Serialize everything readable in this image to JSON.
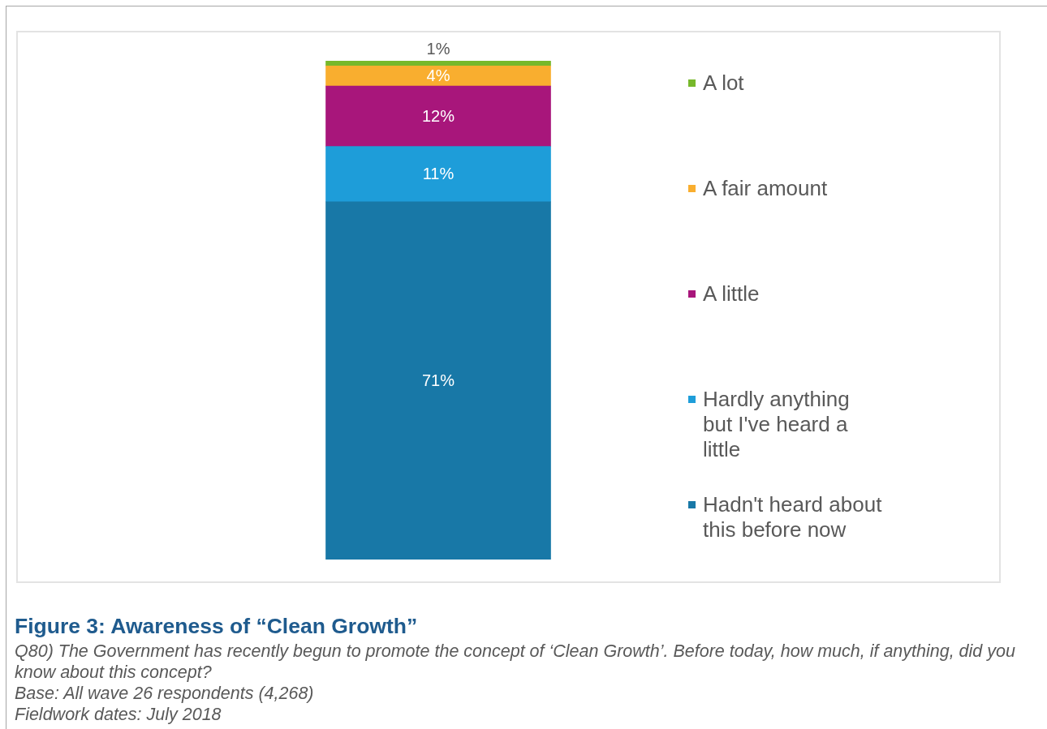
{
  "chart_data": {
    "type": "bar",
    "title": "Figure 3: Awareness of “Clean Growth”",
    "annotations": [
      "Q80) The Government has recently begun to promote the concept of ‘Clean Growth’. Before today, how much, if anything, did you know about this concept?",
      "Base: All wave 26 respondents (4,268)",
      "Fieldwork dates: July 2018"
    ],
    "categories": [
      null
    ],
    "stacked": true,
    "tick_labels": false,
    "legend": "right",
    "series": [
      {
        "name": "Hadn't heard about this before now",
        "color": "#1878a7",
        "values": [
          71
        ],
        "value_labels": [
          "71%"
        ]
      },
      {
        "name": "Hardly anything but I've heard a little",
        "color": "#1e9dd9",
        "values": [
          11
        ],
        "value_labels": [
          "11%"
        ]
      },
      {
        "name": "A little",
        "color": "#a8167b",
        "values": [
          12
        ],
        "value_labels": [
          "12%"
        ]
      },
      {
        "name": "A fair amount",
        "color": "#f9ae2f",
        "values": [
          4
        ],
        "value_labels": [
          "4%"
        ]
      },
      {
        "name": "A lot",
        "color": "#77b82b",
        "values": [
          1
        ],
        "value_labels": [
          "1%"
        ]
      }
    ]
  }
}
